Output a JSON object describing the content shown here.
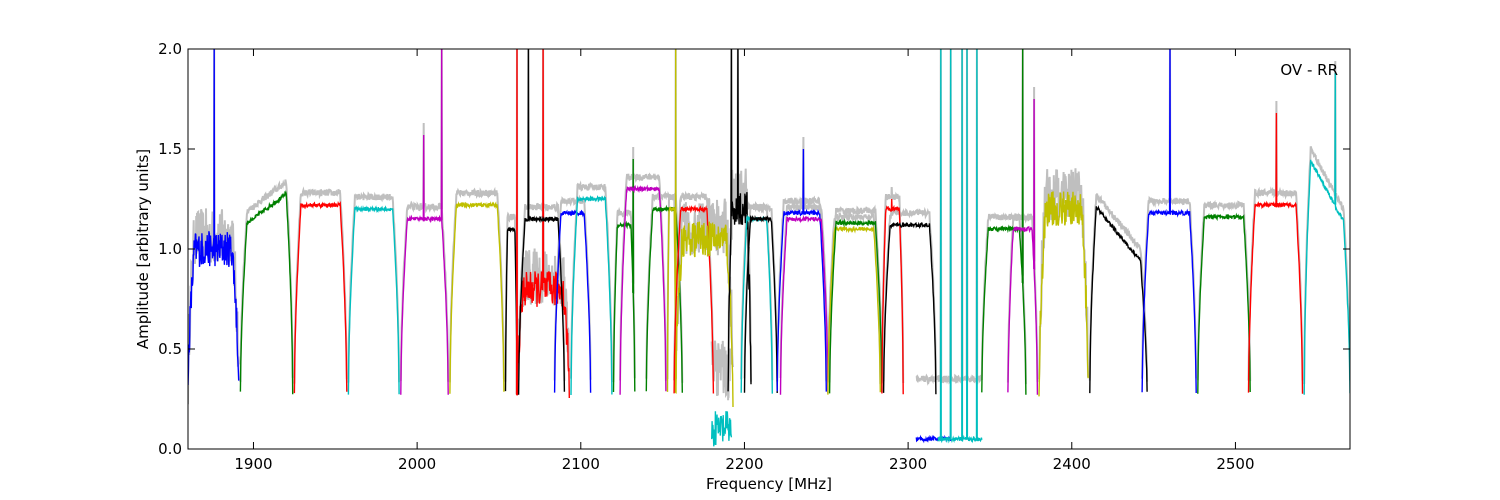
{
  "chart_data": {
    "type": "line",
    "title": "",
    "xlabel": "Frequency [MHz]",
    "ylabel": "Amplitude [arbitrary units]",
    "annotation": "OV - RR",
    "xlim": [
      1860,
      2570
    ],
    "ylim": [
      0.0,
      2.0
    ],
    "xticks": [
      1900,
      2000,
      2100,
      2200,
      2300,
      2400,
      2500
    ],
    "xtick_labels": [
      "1900",
      "2000",
      "2100",
      "2200",
      "2300",
      "2400",
      "2500"
    ],
    "yticks": [
      0.0,
      0.5,
      1.0,
      1.5,
      2.0
    ],
    "ytick_labels": [
      "0.0",
      "0.5",
      "1.0",
      "1.5",
      "2.0"
    ],
    "grid": false,
    "reference_color": "#bfbfbf",
    "bands": [
      {
        "start": 1860,
        "end": 1891,
        "level": 1.0,
        "color": "#0000ff",
        "noisy": true,
        "spikes": [
          [
            1876,
            2.0
          ]
        ]
      },
      {
        "start": 1892,
        "end": 1924,
        "level": 1.3,
        "color": "#008000",
        "rising": true
      },
      {
        "start": 1925,
        "end": 1957,
        "level": 1.22,
        "color": "#ff0000"
      },
      {
        "start": 1958,
        "end": 1989,
        "level": 1.2,
        "color": "#00bfbf"
      },
      {
        "start": 1990,
        "end": 2019,
        "level": 1.15,
        "color": "#bf00bf",
        "spikes": [
          [
            2004,
            1.57
          ],
          [
            2015,
            2.0
          ]
        ]
      },
      {
        "start": 2020,
        "end": 2053,
        "level": 1.22,
        "color": "#bfbf00"
      },
      {
        "start": 2054,
        "end": 2061,
        "level": 1.1,
        "color": "#000000"
      },
      {
        "start": 2061,
        "end": 2093,
        "level": 0.8,
        "color": "#ff0000",
        "noisy": true,
        "spikes": [
          [
            2061,
            2.0
          ],
          [
            2077,
            2.0
          ]
        ]
      },
      {
        "start": 2062,
        "end": 2090,
        "level": 1.15,
        "color": "#000000",
        "spikes": [
          [
            2068,
            2.0
          ]
        ]
      },
      {
        "start": 2084,
        "end": 2106,
        "level": 1.18,
        "color": "#0000ff"
      },
      {
        "start": 2094,
        "end": 2119,
        "level": 1.25,
        "color": "#00bfbf"
      },
      {
        "start": 2120,
        "end": 2133,
        "level": 1.12,
        "color": "#008000",
        "spikes": [
          [
            2132,
            1.45
          ]
        ]
      },
      {
        "start": 2124,
        "end": 2152,
        "level": 1.3,
        "color": "#bf00bf"
      },
      {
        "start": 2140,
        "end": 2162,
        "level": 1.2,
        "color": "#008000"
      },
      {
        "start": 2153,
        "end": 2158,
        "level": 1.2,
        "color": "#bfbf00",
        "spikes": [
          [
            2158,
            2.0
          ]
        ]
      },
      {
        "start": 2157,
        "end": 2181,
        "level": 1.2,
        "color": "#ff0000"
      },
      {
        "start": 2158,
        "end": 2193,
        "level": 1.05,
        "color": "#bfbf00",
        "noisy": true
      },
      {
        "start": 2180,
        "end": 2192,
        "level": 0.1,
        "color": "#00bfbf",
        "noisy": true
      },
      {
        "start": 2190,
        "end": 2204,
        "level": 1.2,
        "color": "#000000",
        "noisy": true,
        "spikes": [
          [
            2192,
            2.0
          ],
          [
            2196,
            2.0
          ]
        ]
      },
      {
        "start": 2198,
        "end": 2217,
        "level": 1.15,
        "color": "#00bfbf"
      },
      {
        "start": 2200,
        "end": 2220,
        "level": 1.15,
        "color": "#000000"
      },
      {
        "start": 2220,
        "end": 2250,
        "level": 1.18,
        "color": "#0000ff",
        "spikes": [
          [
            2236,
            1.5
          ]
        ]
      },
      {
        "start": 2222,
        "end": 2251,
        "level": 1.15,
        "color": "#bf00bf"
      },
      {
        "start": 2251,
        "end": 2283,
        "level": 1.1,
        "color": "#bfbf00"
      },
      {
        "start": 2252,
        "end": 2284,
        "level": 1.13,
        "color": "#008000"
      },
      {
        "start": 2284,
        "end": 2297,
        "level": 1.2,
        "color": "#ff0000",
        "spikes": [
          [
            2290,
            1.25
          ]
        ]
      },
      {
        "start": 2285,
        "end": 2317,
        "level": 1.12,
        "color": "#000000"
      },
      {
        "start": 2305,
        "end": 2326,
        "level": 0.05,
        "color": "#0000ff"
      },
      {
        "start": 2318,
        "end": 2345,
        "level": 0.05,
        "color": "#00bfbf",
        "spikes": [
          [
            2320,
            2.0
          ],
          [
            2326,
            2.0
          ],
          [
            2333,
            2.0
          ],
          [
            2336,
            2.0
          ],
          [
            2342,
            2.0
          ]
        ]
      },
      {
        "start": 2345,
        "end": 2372,
        "level": 1.1,
        "color": "#008000",
        "spikes": [
          [
            2370,
            2.0
          ]
        ]
      },
      {
        "start": 2361,
        "end": 2379,
        "level": 1.1,
        "color": "#bf00bf",
        "spikes": [
          [
            2377,
            1.75
          ]
        ]
      },
      {
        "start": 2380,
        "end": 2410,
        "level": 1.2,
        "color": "#bfbf00",
        "noisy": true
      },
      {
        "start": 2411,
        "end": 2446,
        "level": 1.0,
        "color": "#000000",
        "decreasing": true
      },
      {
        "start": 2443,
        "end": 2476,
        "level": 1.18,
        "color": "#0000ff",
        "spikes": [
          [
            2460,
            2.0
          ]
        ]
      },
      {
        "start": 2477,
        "end": 2509,
        "level": 1.16,
        "color": "#008000"
      },
      {
        "start": 2508,
        "end": 2541,
        "level": 1.22,
        "color": "#ff0000",
        "spikes": [
          [
            2525,
            1.68
          ]
        ]
      },
      {
        "start": 2542,
        "end": 2570,
        "level": 1.2,
        "color": "#00bfbf",
        "decreasing": true,
        "spikes": [
          [
            2561,
            1.88
          ]
        ]
      }
    ]
  }
}
